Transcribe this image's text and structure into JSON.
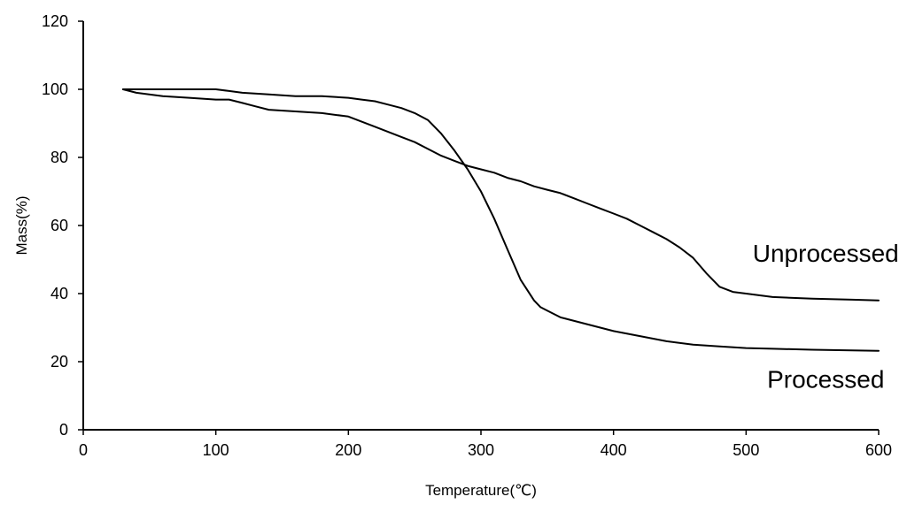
{
  "chart_data": {
    "type": "line",
    "title": "",
    "xlabel": "Temperature(℃)",
    "ylabel": "Mass(%)",
    "xlim": [
      0,
      600
    ],
    "ylim": [
      0,
      120
    ],
    "xticks": [
      0,
      100,
      200,
      300,
      400,
      500,
      600
    ],
    "yticks": [
      0,
      20,
      40,
      60,
      80,
      100,
      120
    ],
    "grid": false,
    "series": [
      {
        "name": "Unprocessed",
        "color": "#000000",
        "x": [
          30,
          40,
          60,
          80,
          100,
          110,
          120,
          130,
          140,
          160,
          180,
          200,
          220,
          240,
          250,
          260,
          270,
          280,
          290,
          300,
          310,
          320,
          330,
          340,
          350,
          360,
          370,
          380,
          390,
          400,
          410,
          420,
          430,
          440,
          450,
          460,
          470,
          480,
          490,
          500,
          520,
          550,
          580,
          600
        ],
        "y": [
          100,
          99,
          98,
          97.5,
          97,
          97,
          96,
          95,
          94,
          93.5,
          93,
          92,
          89,
          86,
          84.5,
          82.5,
          80.5,
          79,
          77.5,
          76.5,
          75.5,
          74,
          73,
          71.5,
          70.5,
          69.5,
          68,
          66.5,
          65,
          63.5,
          62,
          60,
          58,
          56,
          53.5,
          50.5,
          46,
          42,
          40.5,
          40,
          39,
          38.5,
          38.2,
          38
        ]
      },
      {
        "name": "Processed",
        "color": "#000000",
        "x": [
          30,
          40,
          60,
          80,
          100,
          110,
          120,
          140,
          160,
          180,
          200,
          210,
          220,
          230,
          240,
          250,
          260,
          270,
          280,
          290,
          300,
          310,
          320,
          330,
          340,
          345,
          350,
          360,
          380,
          400,
          420,
          440,
          460,
          480,
          500,
          520,
          550,
          580,
          600
        ],
        "y": [
          100,
          100,
          100,
          100,
          100,
          99.5,
          99,
          98.5,
          98,
          98,
          97.5,
          97,
          96.5,
          95.5,
          94.5,
          93,
          91,
          87,
          82,
          76.5,
          70,
          62,
          53,
          44,
          38,
          36,
          35,
          33,
          31,
          29,
          27.5,
          26,
          25,
          24.5,
          24,
          23.8,
          23.5,
          23.3,
          23.2
        ]
      }
    ],
    "annotations": [
      {
        "text": "Unprocessed",
        "x": 520,
        "y": 52,
        "anchor": "middle"
      },
      {
        "text": "Processed",
        "x": 520,
        "y": 15,
        "anchor": "middle"
      }
    ]
  }
}
